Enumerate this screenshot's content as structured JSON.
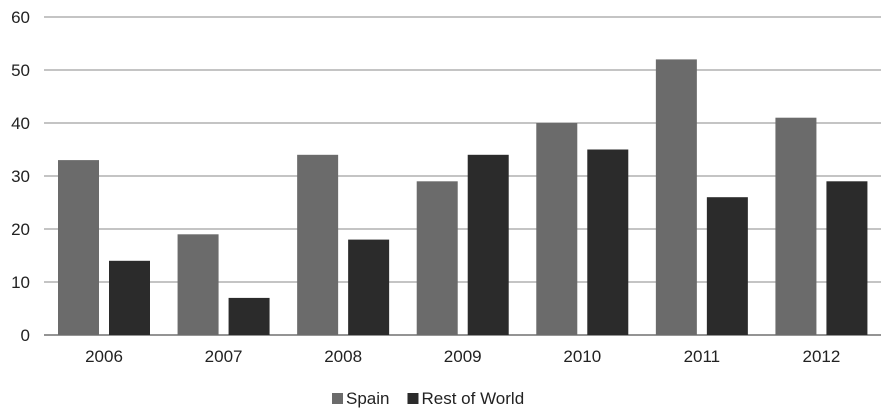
{
  "chart_data": {
    "type": "bar",
    "title": "",
    "xlabel": "",
    "ylabel": "",
    "categories": [
      "2006",
      "2007",
      "2008",
      "2009",
      "2010",
      "2011",
      "2012"
    ],
    "series": [
      {
        "name": "Spain",
        "color": "#6b6b6b",
        "values": [
          33,
          19,
          34,
          29,
          40,
          52,
          41
        ]
      },
      {
        "name": "Rest of World",
        "color": "#2b2b2b",
        "values": [
          14,
          7,
          18,
          34,
          35,
          26,
          29
        ]
      }
    ],
    "ylim": [
      0,
      60
    ],
    "yticks": [
      "0",
      "10",
      "20",
      "30",
      "40",
      "50",
      "60"
    ],
    "grid": true,
    "legend_position": "bottom"
  }
}
